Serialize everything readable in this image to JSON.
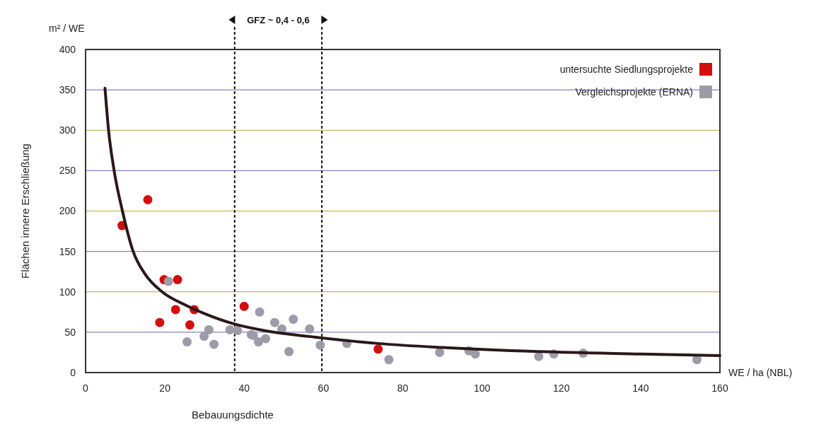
{
  "chart_data": {
    "type": "scatter",
    "ylabel": "Flächen innere Erschließung",
    "xlabel": "Bebauungsdichte",
    "annotations": [
      "GFZ ~ 0,4 - 0,6",
      "m² / WE",
      "WE / ha (NBL)"
    ],
    "xlim": [
      0,
      160
    ],
    "ylim": [
      0,
      400
    ],
    "xticks": [
      0,
      20,
      40,
      60,
      80,
      100,
      120,
      140,
      160
    ],
    "yticks": [
      0,
      50,
      100,
      150,
      200,
      250,
      300,
      350,
      400
    ],
    "grid": "y",
    "legend": "top right",
    "marker": "circle",
    "ref_lines": [
      {
        "axis": "x",
        "value": 37.6,
        "color": "#111111",
        "line_style": "dashed"
      },
      {
        "axis": "x",
        "value": 59.6,
        "color": "#111111",
        "line_style": "dashed"
      }
    ],
    "series": [
      {
        "name": "untersuchte Siedlungsprojekte",
        "color": "#d40d0d",
        "x": [
          9.2,
          15.7,
          19.8,
          23.2,
          22.7,
          18.7,
          26.3,
          27.4,
          40,
          73.8
        ],
        "values": [
          182,
          214,
          115,
          115,
          78,
          62,
          59,
          78,
          82,
          29
        ]
      },
      {
        "name": "Vergleichsprojekte (ERNA)",
        "color": "#9d9ba8",
        "x": [
          20.9,
          25.6,
          29.9,
          31.1,
          32.4,
          36.4,
          38.3,
          41.8,
          42.3,
          43.6,
          45.4,
          43.9,
          47.7,
          49.5,
          52.4,
          51.3,
          56.5,
          59.2,
          65.9,
          76.5,
          89.3,
          96.7,
          98.3,
          114.3,
          118.1,
          125.5,
          154.2
        ],
        "values": [
          113,
          38,
          45,
          53,
          35,
          53,
          52,
          47,
          46,
          38,
          42,
          75,
          62,
          54,
          66,
          26,
          54,
          34,
          36,
          16,
          25,
          27,
          23,
          20,
          23,
          24,
          16
        ]
      },
      {
        "type": "line",
        "color": "#2b1818",
        "marker": "none",
        "x": [
          4.9,
          5.8,
          7.2,
          9.3,
          12,
          15,
          19.3,
          25,
          30,
          37.6,
          45,
          59.4,
          73.8,
          90,
          114,
          140,
          160
        ],
        "values": [
          352,
          300,
          250,
          200,
          150,
          122,
          100,
          84,
          73,
          60,
          52,
          43,
          36,
          31,
          26,
          23,
          21
        ]
      }
    ]
  }
}
